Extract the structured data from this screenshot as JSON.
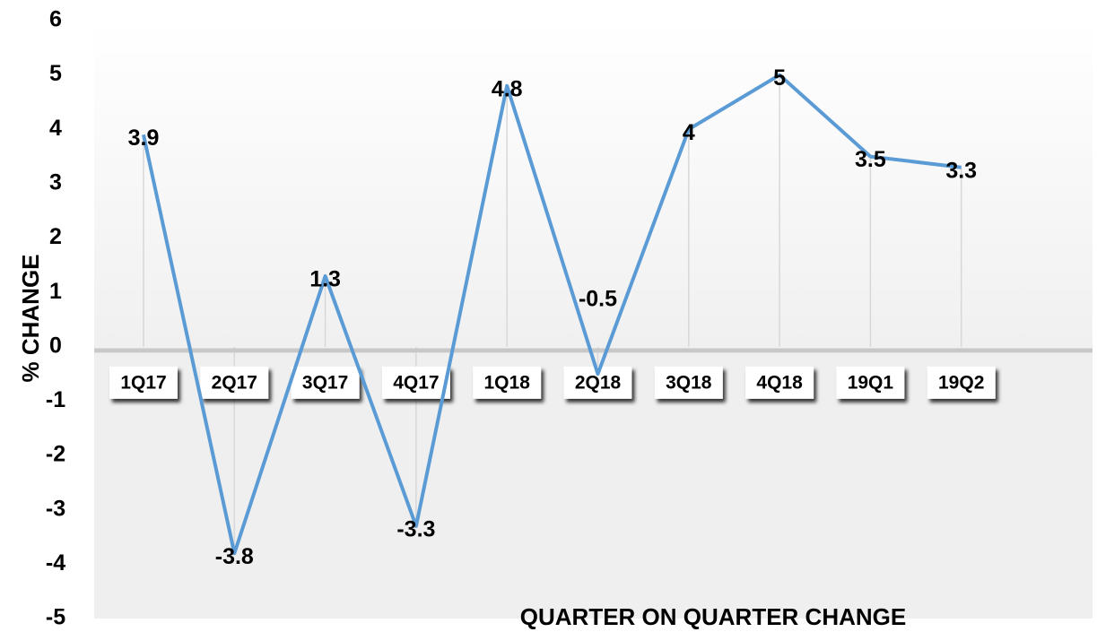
{
  "chart_data": {
    "type": "line",
    "title": "QUARTER ON QUARTER CHANGE",
    "y_label": "% CHANGE",
    "categories": [
      "1Q17",
      "2Q17",
      "3Q17",
      "4Q17",
      "1Q18",
      "2Q18",
      "3Q18",
      "4Q18",
      "19Q1",
      "19Q2"
    ],
    "series": [
      {
        "name": "% CHANGE",
        "color": "#5b9bd5",
        "values": [
          3.9,
          -3.8,
          1.3,
          -3.3,
          4.8,
          -0.5,
          4,
          5,
          3.5,
          3.3
        ]
      }
    ],
    "ylim": [
      -5,
      6
    ],
    "yticks": [
      -5,
      -4,
      -3,
      -2,
      -1,
      0,
      1,
      2,
      3,
      4,
      5,
      6
    ]
  }
}
